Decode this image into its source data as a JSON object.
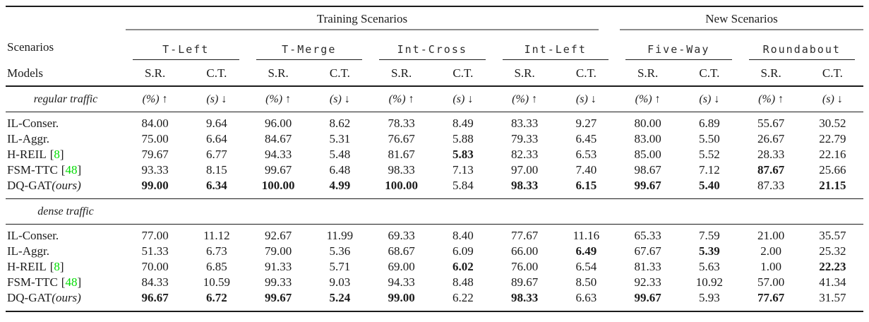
{
  "colors": {
    "citation": "#00dd00",
    "rule_gray": "#8c8c8c",
    "text": "#1b1b1b"
  },
  "citation": {
    "open_bracket": "[",
    "close_bracket": "]"
  },
  "table": {
    "group_headers": [
      {
        "label": "Training Scenarios",
        "span": 8
      },
      {
        "label": "New Scenarios",
        "span": 4
      }
    ],
    "scenarios_label": "Scenarios",
    "models_label": "Models",
    "scenarios": [
      "T-Left",
      "T-Merge",
      "Int-Cross",
      "Int-Left",
      "Five-Way",
      "Roundabout"
    ],
    "metrics": [
      "S.R.",
      "C.T."
    ],
    "sections": [
      {
        "label": "regular traffic",
        "units": [
          {
            "label": "(%)",
            "arrow": "↑"
          },
          {
            "label": "(s)",
            "arrow": "↓"
          },
          {
            "label": "(%)",
            "arrow": "↑"
          },
          {
            "label": "(s)",
            "arrow": "↓"
          },
          {
            "label": "(%)",
            "arrow": "↑"
          },
          {
            "label": "(s)",
            "arrow": "↓"
          },
          {
            "label": "(%)",
            "arrow": "↑"
          },
          {
            "label": "(s)",
            "arrow": "↓"
          },
          {
            "label": "(%)",
            "arrow": "↑"
          },
          {
            "label": "(s)",
            "arrow": "↓"
          },
          {
            "label": "(%)",
            "arrow": "↑"
          },
          {
            "label": "(s)",
            "arrow": "↓"
          }
        ],
        "rows": [
          {
            "model": {
              "name": "IL-Conser."
            },
            "values": [
              "84.00",
              "9.64",
              "96.00",
              "8.62",
              "78.33",
              "8.49",
              "83.33",
              "9.27",
              "80.00",
              "6.89",
              "55.67",
              "30.52"
            ],
            "bold": []
          },
          {
            "model": {
              "name": "IL-Aggr."
            },
            "values": [
              "75.00",
              "6.64",
              "84.67",
              "5.31",
              "76.67",
              "5.88",
              "79.33",
              "6.45",
              "83.00",
              "5.50",
              "26.67",
              "22.79"
            ],
            "bold": []
          },
          {
            "model": {
              "name": "H-REIL",
              "cite": "8"
            },
            "values": [
              "79.67",
              "6.77",
              "94.33",
              "5.48",
              "81.67",
              "5.83",
              "82.33",
              "6.53",
              "85.00",
              "5.52",
              "28.33",
              "22.16"
            ],
            "bold": [
              5
            ]
          },
          {
            "model": {
              "name": "FSM-TTC",
              "cite": "48"
            },
            "values": [
              "93.33",
              "8.15",
              "99.67",
              "6.48",
              "98.33",
              "7.13",
              "97.00",
              "7.40",
              "98.67",
              "7.12",
              "87.67",
              "25.66"
            ],
            "bold": [
              10
            ]
          },
          {
            "model": {
              "name": "DQ-GAT",
              "suffix": "(ours)"
            },
            "values": [
              "99.00",
              "6.34",
              "100.00",
              "4.99",
              "100.00",
              "5.84",
              "98.33",
              "6.15",
              "99.67",
              "5.40",
              "87.33",
              "21.15"
            ],
            "bold": [
              0,
              1,
              2,
              3,
              4,
              6,
              7,
              8,
              9,
              11
            ]
          }
        ]
      },
      {
        "label": "dense traffic",
        "units": null,
        "rows": [
          {
            "model": {
              "name": "IL-Conser."
            },
            "values": [
              "77.00",
              "11.12",
              "92.67",
              "11.99",
              "69.33",
              "8.40",
              "77.67",
              "11.16",
              "65.33",
              "7.59",
              "21.00",
              "35.57"
            ],
            "bold": []
          },
          {
            "model": {
              "name": "IL-Aggr."
            },
            "values": [
              "51.33",
              "6.73",
              "79.00",
              "5.36",
              "68.67",
              "6.09",
              "66.00",
              "6.49",
              "67.67",
              "5.39",
              "2.00",
              "25.32"
            ],
            "bold": [
              7,
              9
            ]
          },
          {
            "model": {
              "name": "H-REIL",
              "cite": "8"
            },
            "values": [
              "70.00",
              "6.85",
              "91.33",
              "5.71",
              "69.00",
              "6.02",
              "76.00",
              "6.54",
              "81.33",
              "5.63",
              "1.00",
              "22.23"
            ],
            "bold": [
              5,
              11
            ]
          },
          {
            "model": {
              "name": "FSM-TTC",
              "cite": "48"
            },
            "values": [
              "84.33",
              "10.59",
              "99.33",
              "9.03",
              "94.33",
              "8.48",
              "89.67",
              "8.50",
              "92.33",
              "10.92",
              "57.00",
              "41.34"
            ],
            "bold": []
          },
          {
            "model": {
              "name": "DQ-GAT",
              "suffix": "(ours)"
            },
            "values": [
              "96.67",
              "6.72",
              "99.67",
              "5.24",
              "99.00",
              "6.22",
              "98.33",
              "6.63",
              "99.67",
              "5.93",
              "77.67",
              "31.57"
            ],
            "bold": [
              0,
              1,
              2,
              3,
              4,
              6,
              8,
              10
            ]
          }
        ]
      }
    ]
  }
}
